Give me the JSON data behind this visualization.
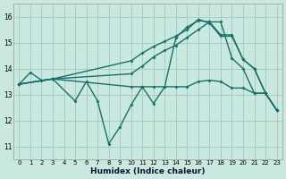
{
  "xlabel": "Humidex (Indice chaleur)",
  "background_color": "#c8e8e0",
  "grid_color": "#a8ccc4",
  "line_color": "#1a7068",
  "line_width": 1.0,
  "marker": "D",
  "marker_size": 2.0,
  "xlim": [
    -0.5,
    23.5
  ],
  "ylim": [
    10.5,
    16.5
  ],
  "yticks": [
    11,
    12,
    13,
    14,
    15,
    16
  ],
  "xticks": [
    0,
    1,
    2,
    3,
    4,
    5,
    6,
    7,
    8,
    9,
    10,
    11,
    12,
    13,
    14,
    15,
    16,
    17,
    18,
    19,
    20,
    21,
    22,
    23
  ],
  "lines": [
    {
      "x": [
        0,
        1,
        2,
        3,
        10,
        11,
        12,
        13,
        14,
        15,
        16,
        17,
        18,
        19,
        20,
        21,
        22,
        23
      ],
      "y": [
        13.4,
        13.85,
        13.55,
        13.6,
        13.8,
        14.1,
        14.45,
        14.7,
        14.9,
        15.2,
        15.5,
        15.8,
        15.3,
        15.3,
        14.35,
        14.0,
        13.05,
        12.4
      ]
    },
    {
      "comment": "line2: big dip line - from 0,13.4 to 3,13.6, dips to 5,12.75, 6,13.5, 7,12.75, 8,11.1, 9,11.75, 10,12.6, then goes up high 14,15.2 15,15.6 16,15.85 17,15.8, then back down",
      "x": [
        0,
        3,
        5,
        6,
        7,
        8,
        9,
        10,
        11,
        12,
        13,
        14,
        15,
        16,
        17,
        18,
        19,
        20,
        21,
        22,
        23
      ],
      "y": [
        13.4,
        13.6,
        12.75,
        13.5,
        12.75,
        11.1,
        11.75,
        12.6,
        13.3,
        12.65,
        13.3,
        15.2,
        15.6,
        15.85,
        15.8,
        15.8,
        14.4,
        14.0,
        13.05,
        13.05,
        12.4
      ]
    },
    {
      "x": [
        0,
        3,
        10,
        11,
        12,
        13,
        14,
        15,
        16,
        17,
        18,
        19,
        20,
        21,
        22,
        23
      ],
      "y": [
        13.4,
        13.6,
        14.3,
        14.6,
        14.85,
        15.05,
        15.25,
        15.5,
        15.9,
        15.75,
        15.25,
        15.25,
        14.35,
        14.0,
        13.05,
        12.4
      ]
    },
    {
      "x": [
        0,
        3,
        10,
        11,
        12,
        13,
        14,
        15,
        16,
        17,
        18,
        19,
        20,
        21,
        22,
        23
      ],
      "y": [
        13.4,
        13.6,
        13.3,
        13.3,
        13.3,
        13.3,
        13.3,
        13.3,
        13.5,
        13.55,
        13.5,
        13.25,
        13.25,
        13.05,
        13.05,
        12.4
      ]
    }
  ]
}
